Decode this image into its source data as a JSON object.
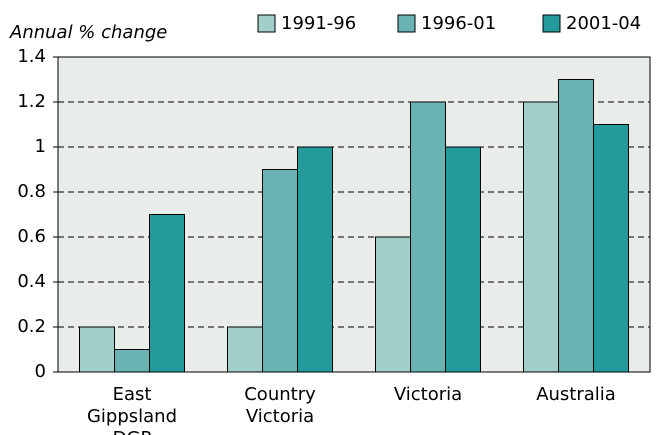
{
  "chart_data": {
    "type": "bar",
    "y_label": "Annual % change",
    "categories": [
      "East Gippsland DGP",
      "Country Victoria",
      "Victoria",
      "Australia"
    ],
    "series": [
      {
        "name": "1991-96",
        "color": "#a3cfcb",
        "values": [
          0.2,
          0.2,
          0.6,
          1.2
        ]
      },
      {
        "name": "1996-01",
        "color": "#6ab3b3",
        "values": [
          0.1,
          0.9,
          1.2,
          1.3
        ]
      },
      {
        "name": "2001-04",
        "color": "#259a9a",
        "values": [
          0.7,
          1.0,
          1.0,
          1.1
        ]
      }
    ],
    "ylim": [
      0,
      1.4
    ],
    "yticks": [
      0,
      0.2,
      0.4,
      0.6,
      0.8,
      1,
      1.2,
      1.4
    ],
    "grid": true,
    "legend": "top"
  }
}
